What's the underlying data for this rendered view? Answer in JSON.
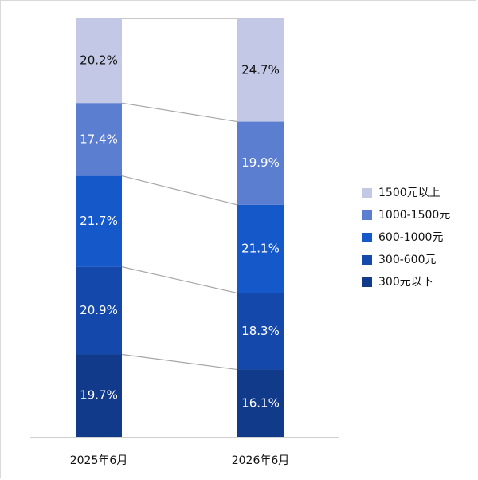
{
  "chart_data": {
    "type": "bar",
    "stacked": true,
    "normalized": true,
    "categories": [
      "2025年6月",
      "2026年6月"
    ],
    "series": [
      {
        "name": "300元以下",
        "color": "#123a8a",
        "values": [
          19.7,
          16.1
        ]
      },
      {
        "name": "300-600元",
        "color": "#1448aa",
        "values": [
          20.9,
          18.3
        ]
      },
      {
        "name": "600-1000元",
        "color": "#1558c9",
        "values": [
          21.7,
          21.1
        ]
      },
      {
        "name": "1000-1500元",
        "color": "#5b7ed0",
        "values": [
          17.4,
          19.9
        ]
      },
      {
        "name": "1500元以上",
        "color": "#c2c8e6",
        "values": [
          20.2,
          24.7
        ]
      }
    ],
    "label_suffix": "%",
    "legend_order": [
      "1500元以上",
      "1000-1500元",
      "600-1000元",
      "300-600元",
      "300元以下"
    ],
    "legend_position": "right",
    "connector_lines": true,
    "grid": false
  }
}
